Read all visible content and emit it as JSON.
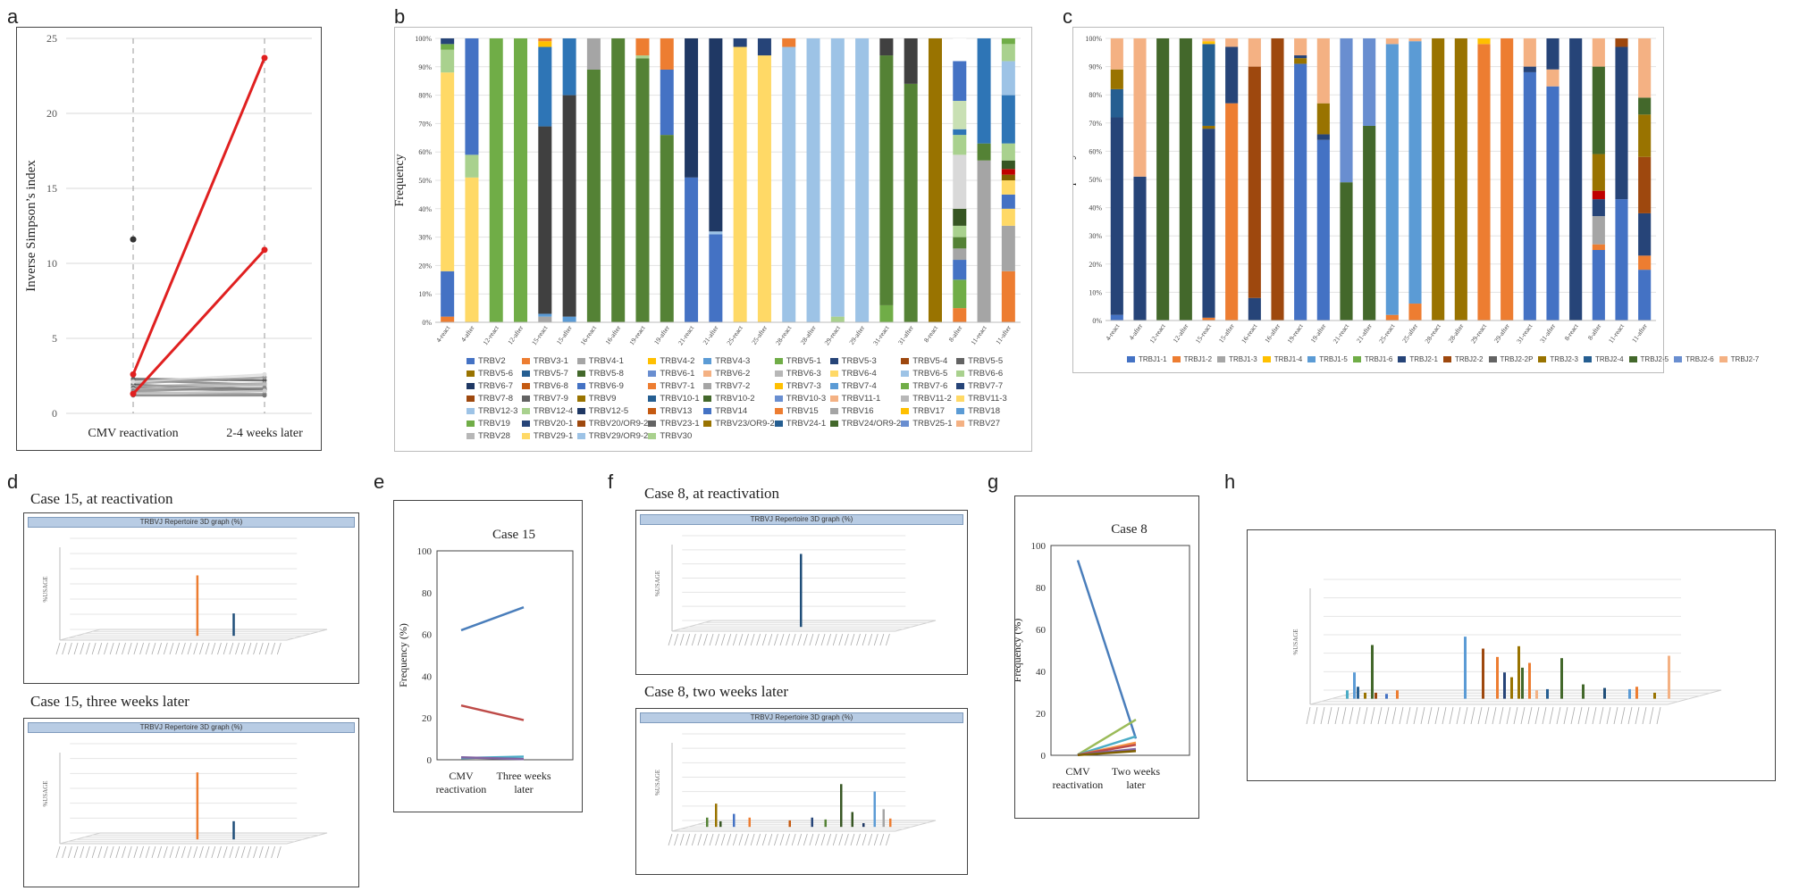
{
  "panel_letters": [
    "a",
    "b",
    "c",
    "d",
    "e",
    "f",
    "g",
    "h"
  ],
  "bar_labels": [
    "4-react",
    "4-after",
    "12-react",
    "12-after",
    "15-react",
    "15-after",
    "16-react",
    "16-after",
    "19-react",
    "19-after",
    "21-react",
    "21-after",
    "25-react",
    "25-after",
    "28-react",
    "28-after",
    "29-react",
    "29-after",
    "31-react",
    "31-after",
    "8-react",
    "8-after",
    "11-react",
    "11-after"
  ],
  "pct_ticks": [
    "0%",
    "10%",
    "20%",
    "30%",
    "40%",
    "50%",
    "60%",
    "70%",
    "80%",
    "90%",
    "100%"
  ],
  "trbv_legend": [
    "TRBV2",
    "TRBV3-1",
    "TRBV4-1",
    "TRBV4-2",
    "TRBV4-3",
    "TRBV5-1",
    "TRBV5-3",
    "TRBV5-4",
    "TRBV5-5",
    "TRBV5-6",
    "TRBV5-7",
    "TRBV5-8",
    "TRBV6-1",
    "TRBV6-2",
    "TRBV6-3",
    "TRBV6-4",
    "TRBV6-5",
    "TRBV6-6",
    "TRBV6-7",
    "TRBV6-8",
    "TRBV6-9",
    "TRBV7-1",
    "TRBV7-2",
    "TRBV7-3",
    "TRBV7-4",
    "TRBV7-6",
    "TRBV7-7",
    "TRBV7-8",
    "TRBV7-9",
    "TRBV9",
    "TRBV10-1",
    "TRBV10-2",
    "TRBV10-3",
    "TRBV11-1",
    "TRBV11-2",
    "TRBV11-3",
    "TRBV12-3",
    "TRBV12-4",
    "TRBV12-5",
    "TRBV13",
    "TRBV14",
    "TRBV15",
    "TRBV16",
    "TRBV17",
    "TRBV18",
    "TRBV19",
    "TRBV20-1",
    "TRBV20/OR9-2",
    "TRBV23-1",
    "TRBV23/OR9-2",
    "TRBV24-1",
    "TRBV24/OR9-2",
    "TRBV25-1",
    "TRBV27",
    "TRBV28",
    "TRBV29-1",
    "TRBV29/OR9-2",
    "TRBV30"
  ],
  "trbj_legend": [
    "TRBJ1-1",
    "TRBJ1-2",
    "TRBJ1-3",
    "TRBJ1-4",
    "TRBJ1-5",
    "TRBJ1-6",
    "TRBJ2-1",
    "TRBJ2-2",
    "TRBJ2-2P",
    "TRBJ2-3",
    "TRBJ2-4",
    "TRBJ2-5",
    "TRBJ2-6",
    "TRBJ2-7"
  ],
  "panel_d": {
    "title_top": "Case 15, at reactivation",
    "title_bottom": "Case 15, three weeks later",
    "header": "TRBVJ Repertoire 3D graph (%)",
    "zlabel": "%USAGE"
  },
  "panel_f": {
    "title_top": "Case 8, at reactivation",
    "title_bottom": "Case 8, two weeks later",
    "header": "TRBVJ Repertoire 3D graph (%)",
    "zlabel": "%USAGE"
  },
  "panel_h": {
    "zlabel": "%USAGE"
  },
  "chart_data": [
    {
      "panel": "a",
      "type": "line",
      "categories": [
        "CMV reactivation",
        "2-4 weeks later"
      ],
      "ylabel": "Inverse Simpson’s index",
      "ylim": [
        0,
        25
      ],
      "yticks": [
        0,
        5,
        10,
        15,
        20,
        25
      ],
      "grid": true,
      "series": [
        {
          "values": [
            2.6,
            23.7
          ],
          "color": "#e02020"
        },
        {
          "values": [
            1.3,
            10.9
          ],
          "color": "#e02020"
        },
        {
          "values": [
            2.3,
            2.2
          ],
          "color": "#555555"
        },
        {
          "values": [
            2.2,
            1.9
          ],
          "color": "#777777"
        },
        {
          "values": [
            2.0,
            2.4
          ],
          "color": "#999999"
        },
        {
          "values": [
            1.9,
            1.6
          ],
          "color": "#444444"
        },
        {
          "values": [
            1.8,
            2.0
          ],
          "color": "#aaaaaa"
        },
        {
          "values": [
            1.7,
            1.5
          ],
          "color": "#666666"
        },
        {
          "values": [
            1.6,
            1.9
          ],
          "color": "#bbbbbb"
        },
        {
          "values": [
            1.5,
            1.7
          ],
          "color": "#888888"
        },
        {
          "values": [
            1.4,
            1.3
          ],
          "color": "#999999"
        },
        {
          "values": [
            1.3,
            1.5
          ],
          "color": "#cccccc"
        },
        {
          "values": [
            2.1,
            2.6
          ],
          "color": "#dddddd"
        },
        {
          "values": [
            1.2,
            1.2
          ],
          "color": "#777777"
        }
      ],
      "outlier": {
        "x": "CMV reactivation",
        "y": 11.6
      }
    },
    {
      "panel": "b",
      "type": "bar",
      "stacked": true,
      "ylabel": "Frequency",
      "ylim": [
        0,
        1
      ],
      "categories": [
        "4-react",
        "4-after",
        "12-react",
        "12-after",
        "15-react",
        "15-after",
        "16-react",
        "16-after",
        "19-react",
        "19-after",
        "21-react",
        "21-after",
        "25-react",
        "25-after",
        "28-react",
        "28-after",
        "29-react",
        "29-after",
        "31-react",
        "31-after",
        "8-react",
        "8-after",
        "11-react",
        "11-after"
      ],
      "stacks": [
        [
          [
            "#ed7d31",
            0.02
          ],
          [
            "#4472c4",
            0.16
          ],
          [
            "#ffd966",
            0.7
          ],
          [
            "#a9d18e",
            0.08
          ],
          [
            "#70ad47",
            0.02
          ],
          [
            "#264478",
            0.02
          ]
        ],
        [
          [
            "#ffd966",
            0.51
          ],
          [
            "#a9d18e",
            0.08
          ],
          [
            "#4472c4",
            0.41
          ]
        ],
        [
          [
            "#70ad47",
            1.0
          ]
        ],
        [
          [
            "#70ad47",
            1.0
          ]
        ],
        [
          [
            "#a5a5a5",
            0.02
          ],
          [
            "#5b9bd5",
            0.01
          ],
          [
            "#404040",
            0.66
          ],
          [
            "#2e75b6",
            0.28
          ],
          [
            "#ffc000",
            0.02
          ],
          [
            "#ed7d31",
            0.01
          ]
        ],
        [
          [
            "#5b9bd5",
            0.02
          ],
          [
            "#404040",
            0.78
          ],
          [
            "#2e75b6",
            0.2
          ]
        ],
        [
          [
            "#548235",
            0.89
          ],
          [
            "#a5a5a5",
            0.11
          ]
        ],
        [
          [
            "#548235",
            1.0
          ]
        ],
        [
          [
            "#548235",
            0.93
          ],
          [
            "#a9d18e",
            0.01
          ],
          [
            "#ed7d31",
            0.06
          ]
        ],
        [
          [
            "#548235",
            0.66
          ],
          [
            "#4472c4",
            0.23
          ],
          [
            "#ed7d31",
            0.11
          ]
        ],
        [
          [
            "#4472c4",
            0.51
          ],
          [
            "#1f3864",
            0.49
          ]
        ],
        [
          [
            "#4472c4",
            0.31
          ],
          [
            "#9dc3e6",
            0.01
          ],
          [
            "#1f3864",
            0.68
          ]
        ],
        [
          [
            "#ffd966",
            0.97
          ],
          [
            "#264478",
            0.03
          ]
        ],
        [
          [
            "#ffd966",
            0.94
          ],
          [
            "#264478",
            0.06
          ]
        ],
        [
          [
            "#9dc3e6",
            0.97
          ],
          [
            "#ed7d31",
            0.03
          ]
        ],
        [
          [
            "#9dc3e6",
            1.0
          ]
        ],
        [
          [
            "#a9d18e",
            0.02
          ],
          [
            "#9dc3e6",
            0.98
          ]
        ],
        [
          [
            "#9dc3e6",
            1.0
          ]
        ],
        [
          [
            "#70ad47",
            0.06
          ],
          [
            "#548235",
            0.88
          ],
          [
            "#404040",
            0.06
          ]
        ],
        [
          [
            "#548235",
            0.84
          ],
          [
            "#404040",
            0.16
          ]
        ],
        [
          [
            "#997300",
            1.0
          ]
        ],
        [
          [
            "#ed7d31",
            0.05
          ],
          [
            "#70ad47",
            0.1
          ],
          [
            "#4472c4",
            0.07
          ],
          [
            "#a5a5a5",
            0.04
          ],
          [
            "#548235",
            0.04
          ],
          [
            "#a9d18e",
            0.04
          ],
          [
            "#375623",
            0.06
          ],
          [
            "#d9d9d9",
            0.19
          ],
          [
            "#a9d18e",
            0.07
          ],
          [
            "#2e75b6",
            0.02
          ],
          [
            "#c9e0b4",
            0.1
          ],
          [
            "#4472c4",
            0.14
          ],
          [
            "#ffffff",
            0.08
          ]
        ],
        [
          [
            "#a5a5a5",
            0.57
          ],
          [
            "#548235",
            0.06
          ],
          [
            "#2e75b6",
            0.37
          ]
        ],
        [
          [
            "#ed7d31",
            0.18
          ],
          [
            "#a5a5a5",
            0.16
          ],
          [
            "#ffd966",
            0.06
          ],
          [
            "#4472c4",
            0.05
          ],
          [
            "#ffd966",
            0.05
          ],
          [
            "#7f6000",
            0.02
          ],
          [
            "#c00000",
            0.02
          ],
          [
            "#375623",
            0.03
          ],
          [
            "#a9d18e",
            0.06
          ],
          [
            "#2e75b6",
            0.17
          ],
          [
            "#9dc3e6",
            0.12
          ],
          [
            "#a9d18e",
            0.06
          ],
          [
            "#70ad47",
            0.02
          ]
        ]
      ]
    },
    {
      "panel": "c",
      "type": "bar",
      "stacked": true,
      "ylabel": "Frequency",
      "ylim": [
        0,
        1
      ],
      "categories": [
        "4-react",
        "4-after",
        "12-react",
        "12-after",
        "15-react",
        "15-after",
        "16-react",
        "16-after",
        "19-react",
        "19-after",
        "21-react",
        "21-after",
        "25-react",
        "25-after",
        "28-react",
        "28-after",
        "29-react",
        "29-after",
        "31-react",
        "31-after",
        "8-react",
        "8-after",
        "11-react",
        "11-after"
      ],
      "stacks": [
        [
          [
            "#4472c4",
            0.02
          ],
          [
            "#264478",
            0.7
          ],
          [
            "#255e91",
            0.1
          ],
          [
            "#997300",
            0.07
          ],
          [
            "#f4b183",
            0.11
          ]
        ],
        [
          [
            "#264478",
            0.51
          ],
          [
            "#f4b183",
            0.49
          ]
        ],
        [
          [
            "#43682b",
            1.0
          ]
        ],
        [
          [
            "#43682b",
            1.0
          ]
        ],
        [
          [
            "#ed7d31",
            0.01
          ],
          [
            "#264478",
            0.67
          ],
          [
            "#997300",
            0.01
          ],
          [
            "#255e91",
            0.29
          ],
          [
            "#ffc000",
            0.01
          ],
          [
            "#f4b183",
            0.01
          ]
        ],
        [
          [
            "#ed7d31",
            0.77
          ],
          [
            "#264478",
            0.2
          ],
          [
            "#f4b183",
            0.03
          ]
        ],
        [
          [
            "#264478",
            0.08
          ],
          [
            "#9e480e",
            0.82
          ],
          [
            "#f4b183",
            0.1
          ]
        ],
        [
          [
            "#9e480e",
            1.0
          ]
        ],
        [
          [
            "#4472c4",
            0.91
          ],
          [
            "#997300",
            0.02
          ],
          [
            "#264478",
            0.01
          ],
          [
            "#f4b183",
            0.06
          ]
        ],
        [
          [
            "#4472c4",
            0.64
          ],
          [
            "#264478",
            0.02
          ],
          [
            "#997300",
            0.11
          ],
          [
            "#f4b183",
            0.23
          ]
        ],
        [
          [
            "#43682b",
            0.49
          ],
          [
            "#698ed0",
            0.51
          ]
        ],
        [
          [
            "#43682b",
            0.69
          ],
          [
            "#698ed0",
            0.31
          ]
        ],
        [
          [
            "#ed7d31",
            0.02
          ],
          [
            "#5b9bd5",
            0.96
          ],
          [
            "#f4b183",
            0.02
          ]
        ],
        [
          [
            "#ed7d31",
            0.06
          ],
          [
            "#5b9bd5",
            0.93
          ],
          [
            "#f4b183",
            0.01
          ]
        ],
        [
          [
            "#997300",
            1.0
          ]
        ],
        [
          [
            "#997300",
            1.0
          ]
        ],
        [
          [
            "#ed7d31",
            0.98
          ],
          [
            "#ffc000",
            0.02
          ]
        ],
        [
          [
            "#ed7d31",
            1.0
          ]
        ],
        [
          [
            "#4472c4",
            0.88
          ],
          [
            "#264478",
            0.02
          ],
          [
            "#f4b183",
            0.1
          ]
        ],
        [
          [
            "#4472c4",
            0.83
          ],
          [
            "#f4b183",
            0.06
          ],
          [
            "#264478",
            0.11
          ]
        ],
        [
          [
            "#264478",
            1.0
          ]
        ],
        [
          [
            "#4472c4",
            0.25
          ],
          [
            "#ed7d31",
            0.02
          ],
          [
            "#a5a5a5",
            0.1
          ],
          [
            "#264478",
            0.06
          ],
          [
            "#c00000",
            0.03
          ],
          [
            "#997300",
            0.13
          ],
          [
            "#43682b",
            0.31
          ],
          [
            "#f4b183",
            0.1
          ]
        ],
        [
          [
            "#4472c4",
            0.43
          ],
          [
            "#264478",
            0.54
          ],
          [
            "#9e480e",
            0.03
          ]
        ],
        [
          [
            "#4472c4",
            0.18
          ],
          [
            "#ed7d31",
            0.05
          ],
          [
            "#264478",
            0.15
          ],
          [
            "#9e480e",
            0.2
          ],
          [
            "#997300",
            0.15
          ],
          [
            "#43682b",
            0.06
          ],
          [
            "#f4b183",
            0.21
          ]
        ]
      ]
    },
    {
      "panel": "e",
      "type": "line",
      "title": "Case 15",
      "categories": [
        "CMV reactivation",
        "Three weeks later"
      ],
      "ylabel": "Frequency (%)",
      "ylim": [
        0,
        100
      ],
      "yticks": [
        0,
        20,
        40,
        60,
        80,
        100
      ],
      "series": [
        {
          "values": [
            62,
            73
          ],
          "color": "#4a7ebb"
        },
        {
          "values": [
            26,
            19
          ],
          "color": "#be4b48"
        },
        {
          "values": [
            0.8,
            1.5
          ],
          "color": "#4bacc6"
        },
        {
          "values": [
            1.2,
            0.3
          ],
          "color": "#8064a2"
        }
      ]
    },
    {
      "panel": "g",
      "type": "line",
      "title": "Case 8",
      "categories": [
        "CMV reactivation",
        "Two weeks later"
      ],
      "ylabel": "Frequency (%)",
      "ylim": [
        0,
        100
      ],
      "yticks": [
        0,
        20,
        40,
        60,
        80,
        100
      ],
      "series": [
        {
          "values": [
            93,
            8
          ],
          "color": "#4a7ebb"
        },
        {
          "values": [
            0.3,
            17
          ],
          "color": "#9bbb59"
        },
        {
          "values": [
            0.3,
            9
          ],
          "color": "#4bacc6"
        },
        {
          "values": [
            0.2,
            6
          ],
          "color": "#f79646"
        },
        {
          "values": [
            0.2,
            5
          ],
          "color": "#be4b48"
        },
        {
          "values": [
            0.2,
            3
          ],
          "color": "#8064a2"
        },
        {
          "values": [
            0.1,
            2
          ],
          "color": "#7f6000"
        }
      ]
    }
  ]
}
